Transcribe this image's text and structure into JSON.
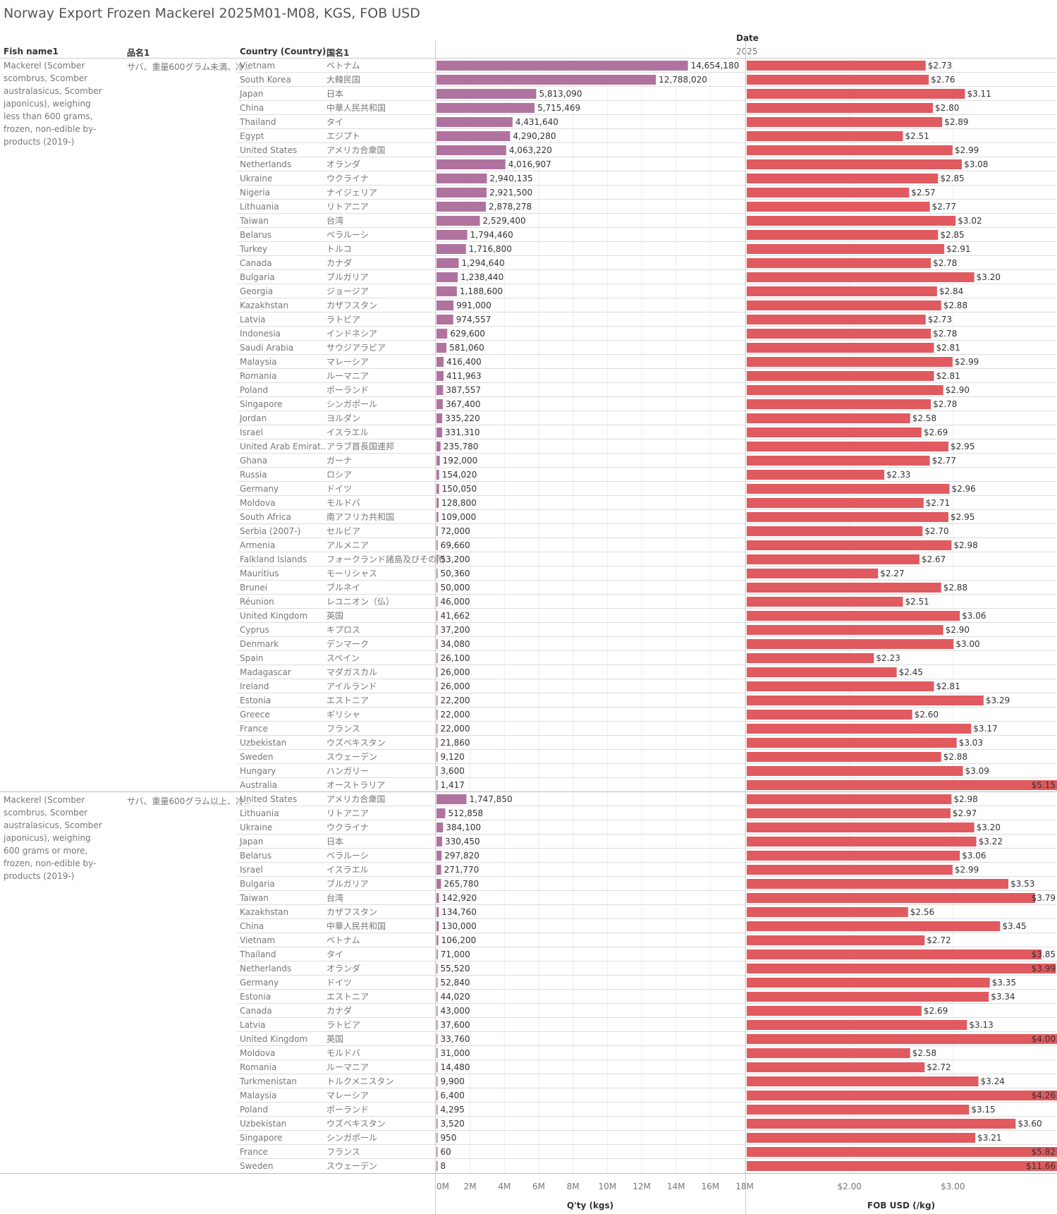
{
  "title": "Norway Export Frozen Mackerel 2025M01-M08, KGS, FOB USD",
  "headers": {
    "fish_name": "Fish name1",
    "jp_name": "品名1",
    "country": "Country (Country)",
    "country_jp": "国名1",
    "date": "Date",
    "year": "2025"
  },
  "colors": {
    "qty_bar": "#b0739f",
    "price_bar": "#e05a5f",
    "grid": "#dddddd"
  },
  "chart_data": {
    "type": "bar",
    "orientation": "horizontal",
    "qty_axis": {
      "label": "Q'ty (kgs)",
      "range": [
        0,
        18000000
      ],
      "ticks": [
        "0M",
        "2M",
        "4M",
        "6M",
        "8M",
        "10M",
        "12M",
        "14M",
        "16M",
        "18M"
      ]
    },
    "price_axis": {
      "label": "FOB USD (/kg)",
      "range": [
        1.0,
        4.0
      ],
      "ticks": [
        "$2.00",
        "$3.00"
      ]
    },
    "groups": [
      {
        "fish_name": "Mackerel (Scomber scombrus, Scomber australasicus, Scomber japonicus), weighing less than 600 grams, frozen, non-edible by-products (2019-)",
        "jp_name": "サバ、重量600グラム未満、冷..",
        "rows": [
          {
            "country": "Vietnam",
            "jp": "ベトナム",
            "qty": 14654180,
            "qty_label": "14,654,180",
            "price": 2.73,
            "price_label": "$2.73"
          },
          {
            "country": "South Korea",
            "jp": "大韓民国",
            "qty": 12788020,
            "qty_label": "12,788,020",
            "price": 2.76,
            "price_label": "$2.76"
          },
          {
            "country": "Japan",
            "jp": "日本",
            "qty": 5813090,
            "qty_label": "5,813,090",
            "price": 3.11,
            "price_label": "$3.11"
          },
          {
            "country": "China",
            "jp": "中華人民共和国",
            "qty": 5715469,
            "qty_label": "5,715,469",
            "price": 2.8,
            "price_label": "$2.80"
          },
          {
            "country": "Thailand",
            "jp": "タイ",
            "qty": 4431640,
            "qty_label": "4,431,640",
            "price": 2.89,
            "price_label": "$2.89"
          },
          {
            "country": "Egypt",
            "jp": "エジプト",
            "qty": 4290280,
            "qty_label": "4,290,280",
            "price": 2.51,
            "price_label": "$2.51"
          },
          {
            "country": "United States",
            "jp": "アメリカ合衆国",
            "qty": 4063220,
            "qty_label": "4,063,220",
            "price": 2.99,
            "price_label": "$2.99"
          },
          {
            "country": "Netherlands",
            "jp": "オランダ",
            "qty": 4016907,
            "qty_label": "4,016,907",
            "price": 3.08,
            "price_label": "$3.08"
          },
          {
            "country": "Ukraine",
            "jp": "ウクライナ",
            "qty": 2940135,
            "qty_label": "2,940,135",
            "price": 2.85,
            "price_label": "$2.85"
          },
          {
            "country": "Nigeria",
            "jp": "ナイジェリア",
            "qty": 2921500,
            "qty_label": "2,921,500",
            "price": 2.57,
            "price_label": "$2.57"
          },
          {
            "country": "Lithuania",
            "jp": "リトアニア",
            "qty": 2878278,
            "qty_label": "2,878,278",
            "price": 2.77,
            "price_label": "$2.77"
          },
          {
            "country": "Taiwan",
            "jp": "台湾",
            "qty": 2529400,
            "qty_label": "2,529,400",
            "price": 3.02,
            "price_label": "$3.02"
          },
          {
            "country": "Belarus",
            "jp": "ベラルーシ",
            "qty": 1794460,
            "qty_label": "1,794,460",
            "price": 2.85,
            "price_label": "$2.85"
          },
          {
            "country": "Turkey",
            "jp": "トルコ",
            "qty": 1716800,
            "qty_label": "1,716,800",
            "price": 2.91,
            "price_label": "$2.91"
          },
          {
            "country": "Canada",
            "jp": "カナダ",
            "qty": 1294640,
            "qty_label": "1,294,640",
            "price": 2.78,
            "price_label": "$2.78"
          },
          {
            "country": "Bulgaria",
            "jp": "ブルガリア",
            "qty": 1238440,
            "qty_label": "1,238,440",
            "price": 3.2,
            "price_label": "$3.20"
          },
          {
            "country": "Georgia",
            "jp": "ジョージア",
            "qty": 1188600,
            "qty_label": "1,188,600",
            "price": 2.84,
            "price_label": "$2.84"
          },
          {
            "country": "Kazakhstan",
            "jp": "カザフスタン",
            "qty": 991000,
            "qty_label": "991,000",
            "price": 2.88,
            "price_label": "$2.88"
          },
          {
            "country": "Latvia",
            "jp": "ラトビア",
            "qty": 974557,
            "qty_label": "974,557",
            "price": 2.73,
            "price_label": "$2.73"
          },
          {
            "country": "Indonesia",
            "jp": "インドネシア",
            "qty": 629600,
            "qty_label": "629,600",
            "price": 2.78,
            "price_label": "$2.78"
          },
          {
            "country": "Saudi Arabia",
            "jp": "サウジアラビア",
            "qty": 581060,
            "qty_label": "581,060",
            "price": 2.81,
            "price_label": "$2.81"
          },
          {
            "country": "Malaysia",
            "jp": "マレーシア",
            "qty": 416400,
            "qty_label": "416,400",
            "price": 2.99,
            "price_label": "$2.99"
          },
          {
            "country": "Romania",
            "jp": "ルーマニア",
            "qty": 411963,
            "qty_label": "411,963",
            "price": 2.81,
            "price_label": "$2.81"
          },
          {
            "country": "Poland",
            "jp": "ポーランド",
            "qty": 387557,
            "qty_label": "387,557",
            "price": 2.9,
            "price_label": "$2.90"
          },
          {
            "country": "Singapore",
            "jp": "シンガポール",
            "qty": 367400,
            "qty_label": "367,400",
            "price": 2.78,
            "price_label": "$2.78"
          },
          {
            "country": "Jordan",
            "jp": "ヨルダン",
            "qty": 335220,
            "qty_label": "335,220",
            "price": 2.58,
            "price_label": "$2.58"
          },
          {
            "country": "Israel",
            "jp": "イスラエル",
            "qty": 331310,
            "qty_label": "331,310",
            "price": 2.69,
            "price_label": "$2.69"
          },
          {
            "country": "United Arab Emirat..",
            "jp": "アラブ首長国連邦",
            "qty": 235780,
            "qty_label": "235,780",
            "price": 2.95,
            "price_label": "$2.95"
          },
          {
            "country": "Ghana",
            "jp": "ガーナ",
            "qty": 192000,
            "qty_label": "192,000",
            "price": 2.77,
            "price_label": "$2.77"
          },
          {
            "country": "Russia",
            "jp": "ロシア",
            "qty": 154020,
            "qty_label": "154,020",
            "price": 2.33,
            "price_label": "$2.33"
          },
          {
            "country": "Germany",
            "jp": "ドイツ",
            "qty": 150050,
            "qty_label": "150,050",
            "price": 2.96,
            "price_label": "$2.96"
          },
          {
            "country": "Moldova",
            "jp": "モルドバ",
            "qty": 128800,
            "qty_label": "128,800",
            "price": 2.71,
            "price_label": "$2.71"
          },
          {
            "country": "South Africa",
            "jp": "南アフリカ共和国",
            "qty": 109000,
            "qty_label": "109,000",
            "price": 2.95,
            "price_label": "$2.95"
          },
          {
            "country": "Serbia (2007-)",
            "jp": "セルビア",
            "qty": 72000,
            "qty_label": "72,000",
            "price": 2.7,
            "price_label": "$2.70"
          },
          {
            "country": "Armenia",
            "jp": "アルメニア",
            "qty": 69660,
            "qty_label": "69,660",
            "price": 2.98,
            "price_label": "$2.98"
          },
          {
            "country": "Falkland Islands",
            "jp": "フォークランド諸島及びその附..",
            "qty": 53200,
            "qty_label": "53,200",
            "price": 2.67,
            "price_label": "$2.67"
          },
          {
            "country": "Mauritius",
            "jp": "モーリシャス",
            "qty": 50360,
            "qty_label": "50,360",
            "price": 2.27,
            "price_label": "$2.27"
          },
          {
            "country": "Brunei",
            "jp": "ブルネイ",
            "qty": 50000,
            "qty_label": "50,000",
            "price": 2.88,
            "price_label": "$2.88"
          },
          {
            "country": "Réunion",
            "jp": "レユニオン（仏）",
            "qty": 46000,
            "qty_label": "46,000",
            "price": 2.51,
            "price_label": "$2.51"
          },
          {
            "country": "United Kingdom",
            "jp": "英国",
            "qty": 41662,
            "qty_label": "41,662",
            "price": 3.06,
            "price_label": "$3.06"
          },
          {
            "country": "Cyprus",
            "jp": "キプロス",
            "qty": 37200,
            "qty_label": "37,200",
            "price": 2.9,
            "price_label": "$2.90"
          },
          {
            "country": "Denmark",
            "jp": "デンマーク",
            "qty": 34080,
            "qty_label": "34,080",
            "price": 3.0,
            "price_label": "$3.00"
          },
          {
            "country": "Spain",
            "jp": "スペイン",
            "qty": 26100,
            "qty_label": "26,100",
            "price": 2.23,
            "price_label": "$2.23"
          },
          {
            "country": "Madagascar",
            "jp": "マダガスカル",
            "qty": 26000,
            "qty_label": "26,000",
            "price": 2.45,
            "price_label": "$2.45"
          },
          {
            "country": "Ireland",
            "jp": "アイルランド",
            "qty": 26000,
            "qty_label": "26,000",
            "price": 2.81,
            "price_label": "$2.81"
          },
          {
            "country": "Estonia",
            "jp": "エストニア",
            "qty": 22200,
            "qty_label": "22,200",
            "price": 3.29,
            "price_label": "$3.29"
          },
          {
            "country": "Greece",
            "jp": "ギリシャ",
            "qty": 22000,
            "qty_label": "22,000",
            "price": 2.6,
            "price_label": "$2.60"
          },
          {
            "country": "France",
            "jp": "フランス",
            "qty": 22000,
            "qty_label": "22,000",
            "price": 3.17,
            "price_label": "$3.17"
          },
          {
            "country": "Uzbekistan",
            "jp": "ウズベキスタン",
            "qty": 21860,
            "qty_label": "21,860",
            "price": 3.03,
            "price_label": "$3.03"
          },
          {
            "country": "Sweden",
            "jp": "スウェーデン",
            "qty": 9120,
            "qty_label": "9,120",
            "price": 2.88,
            "price_label": "$2.88"
          },
          {
            "country": "Hungary",
            "jp": "ハンガリー",
            "qty": 3600,
            "qty_label": "3,600",
            "price": 3.09,
            "price_label": "$3.09"
          },
          {
            "country": "Australia",
            "jp": "オーストラリア",
            "qty": 1417,
            "qty_label": "1,417",
            "price": 5.15,
            "price_label": "$5.15"
          }
        ]
      },
      {
        "fish_name": "Mackerel (Scomber scombrus, Scomber australasicus, Scomber japonicus), weighing 600 grams or more, frozen, non-edible by-products (2019-)",
        "jp_name": "サバ、重量600グラム以上、冷..",
        "rows": [
          {
            "country": "United States",
            "jp": "アメリカ合衆国",
            "qty": 1747850,
            "qty_label": "1,747,850",
            "price": 2.98,
            "price_label": "$2.98"
          },
          {
            "country": "Lithuania",
            "jp": "リトアニア",
            "qty": 512858,
            "qty_label": "512,858",
            "price": 2.97,
            "price_label": "$2.97"
          },
          {
            "country": "Ukraine",
            "jp": "ウクライナ",
            "qty": 384100,
            "qty_label": "384,100",
            "price": 3.2,
            "price_label": "$3.20"
          },
          {
            "country": "Japan",
            "jp": "日本",
            "qty": 330450,
            "qty_label": "330,450",
            "price": 3.22,
            "price_label": "$3.22"
          },
          {
            "country": "Belarus",
            "jp": "ベラルーシ",
            "qty": 297820,
            "qty_label": "297,820",
            "price": 3.06,
            "price_label": "$3.06"
          },
          {
            "country": "Israel",
            "jp": "イスラエル",
            "qty": 271770,
            "qty_label": "271,770",
            "price": 2.99,
            "price_label": "$2.99"
          },
          {
            "country": "Bulgaria",
            "jp": "ブルガリア",
            "qty": 265780,
            "qty_label": "265,780",
            "price": 3.53,
            "price_label": "$3.53"
          },
          {
            "country": "Taiwan",
            "jp": "台湾",
            "qty": 142920,
            "qty_label": "142,920",
            "price": 3.79,
            "price_label": "$3.79"
          },
          {
            "country": "Kazakhstan",
            "jp": "カザフスタン",
            "qty": 134760,
            "qty_label": "134,760",
            "price": 2.56,
            "price_label": "$2.56"
          },
          {
            "country": "China",
            "jp": "中華人民共和国",
            "qty": 130000,
            "qty_label": "130,000",
            "price": 3.45,
            "price_label": "$3.45"
          },
          {
            "country": "Vietnam",
            "jp": "ベトナム",
            "qty": 106200,
            "qty_label": "106,200",
            "price": 2.72,
            "price_label": "$2.72"
          },
          {
            "country": "Thailand",
            "jp": "タイ",
            "qty": 71000,
            "qty_label": "71,000",
            "price": 3.85,
            "price_label": "$3.85"
          },
          {
            "country": "Netherlands",
            "jp": "オランダ",
            "qty": 55520,
            "qty_label": "55,520",
            "price": 3.99,
            "price_label": "$3.99"
          },
          {
            "country": "Germany",
            "jp": "ドイツ",
            "qty": 52840,
            "qty_label": "52,840",
            "price": 3.35,
            "price_label": "$3.35"
          },
          {
            "country": "Estonia",
            "jp": "エストニア",
            "qty": 44020,
            "qty_label": "44,020",
            "price": 3.34,
            "price_label": "$3.34"
          },
          {
            "country": "Canada",
            "jp": "カナダ",
            "qty": 43000,
            "qty_label": "43,000",
            "price": 2.69,
            "price_label": "$2.69"
          },
          {
            "country": "Latvia",
            "jp": "ラトビア",
            "qty": 37600,
            "qty_label": "37,600",
            "price": 3.13,
            "price_label": "$3.13"
          },
          {
            "country": "United Kingdom",
            "jp": "英国",
            "qty": 33760,
            "qty_label": "33,760",
            "price": 4.0,
            "price_label": "$4.00"
          },
          {
            "country": "Moldova",
            "jp": "モルドバ",
            "qty": 31000,
            "qty_label": "31,000",
            "price": 2.58,
            "price_label": "$2.58"
          },
          {
            "country": "Romania",
            "jp": "ルーマニア",
            "qty": 14480,
            "qty_label": "14,480",
            "price": 2.72,
            "price_label": "$2.72"
          },
          {
            "country": "Turkmenistan",
            "jp": "トルクメニスタン",
            "qty": 9900,
            "qty_label": "9,900",
            "price": 3.24,
            "price_label": "$3.24"
          },
          {
            "country": "Malaysia",
            "jp": "マレーシア",
            "qty": 6400,
            "qty_label": "6,400",
            "price": 4.26,
            "price_label": "$4.26"
          },
          {
            "country": "Poland",
            "jp": "ポーランド",
            "qty": 4295,
            "qty_label": "4,295",
            "price": 3.15,
            "price_label": "$3.15"
          },
          {
            "country": "Uzbekistan",
            "jp": "ウズベキスタン",
            "qty": 3520,
            "qty_label": "3,520",
            "price": 3.6,
            "price_label": "$3.60"
          },
          {
            "country": "Singapore",
            "jp": "シンガポール",
            "qty": 950,
            "qty_label": "950",
            "price": 3.21,
            "price_label": "$3.21"
          },
          {
            "country": "France",
            "jp": "フランス",
            "qty": 60,
            "qty_label": "60",
            "price": 5.82,
            "price_label": "$5.82"
          },
          {
            "country": "Sweden",
            "jp": "スウェーデン",
            "qty": 8,
            "qty_label": "8",
            "price": 11.66,
            "price_label": "$11.66"
          }
        ]
      }
    ]
  }
}
